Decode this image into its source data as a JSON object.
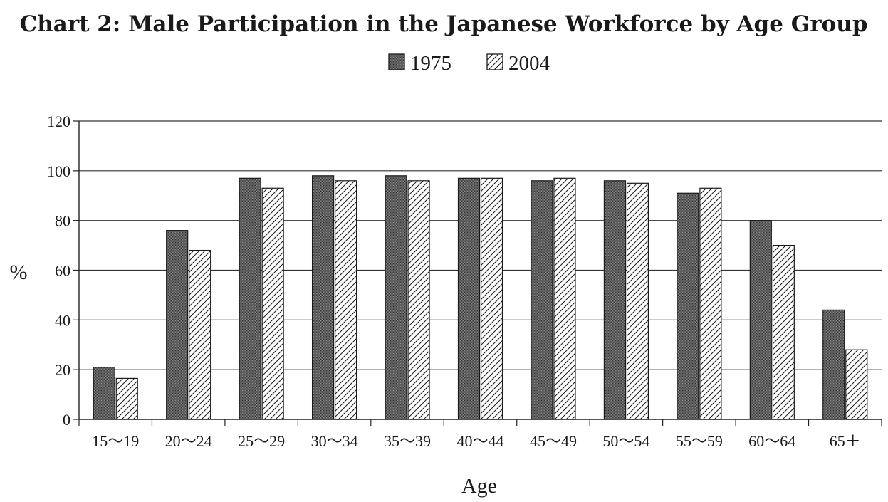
{
  "chart_data": {
    "type": "bar",
    "title": "Chart 2: Male Participation in the Japanese Workforce by Age Group",
    "xlabel": "Age",
    "ylabel": "%",
    "ylim": [
      0,
      120
    ],
    "yticks": [
      0,
      20,
      40,
      60,
      80,
      100,
      120
    ],
    "grid": true,
    "legend_position": "top-center",
    "categories": [
      "15～19",
      "20～24",
      "25～29",
      "30～34",
      "35～39",
      "40～44",
      "45～49",
      "50～54",
      "55～59",
      "60～64",
      "65＋"
    ],
    "series": [
      {
        "name": "1975",
        "values": [
          21,
          76,
          97,
          98,
          98,
          97,
          96,
          96,
          91,
          80,
          44
        ],
        "fill": "dark-stipple",
        "color": "#555555"
      },
      {
        "name": "2004",
        "values": [
          16.5,
          68,
          93,
          96,
          96,
          97,
          97,
          95,
          93,
          70,
          28
        ],
        "fill": "diagonal-hatch",
        "color": "#ffffff"
      }
    ]
  }
}
